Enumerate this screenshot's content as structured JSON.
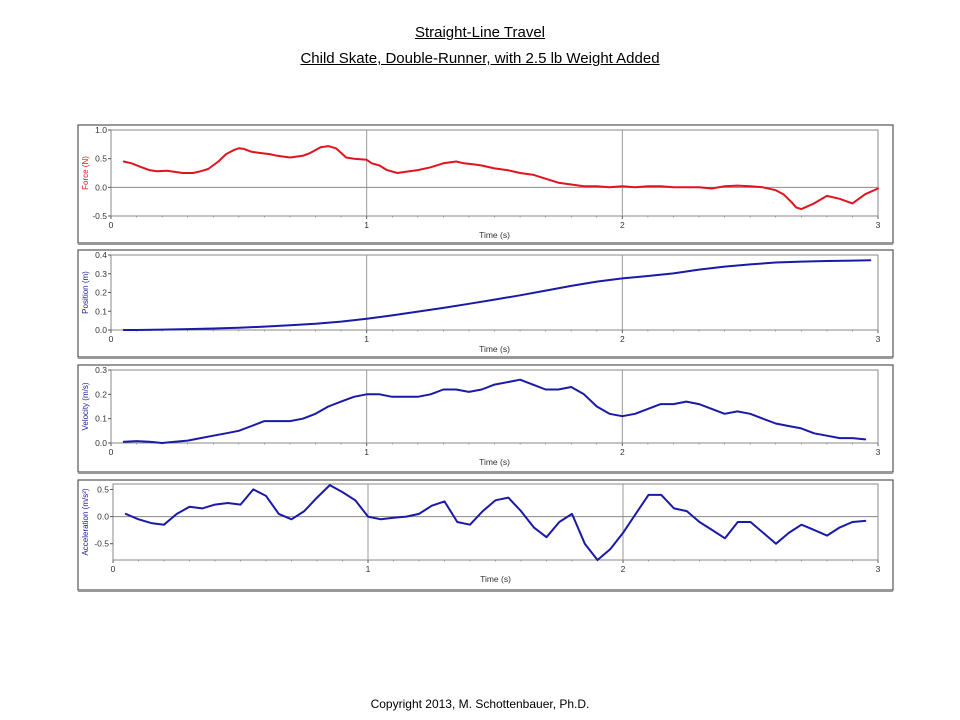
{
  "title": "Straight-Line Travel",
  "subtitle": "Child Skate, Double-Runner, with 2.5 lb Weight Added",
  "copyright": "Copyright 2013, M. Schottenbauer, Ph.D.",
  "chart_data": [
    {
      "type": "line",
      "ylabel": "Force (N)",
      "xlabel": "Time (s)",
      "xlim": [
        0,
        3
      ],
      "ylim": [
        -0.5,
        1.0
      ],
      "xticks": [
        "0",
        "1",
        "2",
        "3"
      ],
      "yticks": [
        "1.0",
        "0.5",
        "0.0",
        "-0.5"
      ],
      "color": "#e0141e",
      "grid": "vertical",
      "series": [
        {
          "x": [
            0.05,
            0.08,
            0.12,
            0.15,
            0.18,
            0.22,
            0.25,
            0.28,
            0.32,
            0.35,
            0.38,
            0.42,
            0.45,
            0.48,
            0.5,
            0.52,
            0.55,
            0.58,
            0.62,
            0.65,
            0.7,
            0.75,
            0.78,
            0.82,
            0.85,
            0.88,
            0.92,
            0.95,
            1.0,
            1.02,
            1.05,
            1.08,
            1.12,
            1.15,
            1.2,
            1.25,
            1.3,
            1.35,
            1.38,
            1.42,
            1.45,
            1.5,
            1.55,
            1.6,
            1.65,
            1.7,
            1.75,
            1.8,
            1.85,
            1.9,
            1.95,
            2.0,
            2.05,
            2.1,
            2.15,
            2.2,
            2.25,
            2.3,
            2.35,
            2.4,
            2.45,
            2.5,
            2.55,
            2.6,
            2.63,
            2.66,
            2.68,
            2.7,
            2.75,
            2.8,
            2.85,
            2.9,
            2.95,
            3.0
          ],
          "y": [
            0.45,
            0.42,
            0.35,
            0.3,
            0.28,
            0.29,
            0.27,
            0.25,
            0.25,
            0.28,
            0.32,
            0.45,
            0.58,
            0.65,
            0.68,
            0.67,
            0.62,
            0.6,
            0.58,
            0.55,
            0.52,
            0.55,
            0.6,
            0.7,
            0.72,
            0.68,
            0.52,
            0.5,
            0.48,
            0.42,
            0.38,
            0.3,
            0.25,
            0.27,
            0.3,
            0.35,
            0.42,
            0.45,
            0.42,
            0.4,
            0.38,
            0.33,
            0.3,
            0.25,
            0.22,
            0.15,
            0.08,
            0.05,
            0.02,
            0.02,
            0.0,
            0.02,
            0.0,
            0.02,
            0.02,
            0.0,
            0.0,
            0.0,
            -0.02,
            0.02,
            0.03,
            0.02,
            0.0,
            -0.05,
            -0.12,
            -0.25,
            -0.35,
            -0.38,
            -0.28,
            -0.15,
            -0.2,
            -0.28,
            -0.12,
            -0.02
          ]
        }
      ]
    },
    {
      "type": "line",
      "ylabel": "Position (m)",
      "xlabel": "Time (s)",
      "xlim": [
        0,
        3
      ],
      "ylim": [
        0,
        0.4
      ],
      "xticks": [
        "0",
        "1",
        "2",
        "3"
      ],
      "yticks": [
        "0.4",
        "0.3",
        "0.2",
        "0.1",
        "0.0"
      ],
      "color": "#1a1aa6",
      "grid": "vertical",
      "series": [
        {
          "x": [
            0.05,
            0.1,
            0.2,
            0.3,
            0.4,
            0.5,
            0.6,
            0.7,
            0.8,
            0.9,
            1.0,
            1.1,
            1.2,
            1.3,
            1.4,
            1.5,
            1.6,
            1.7,
            1.8,
            1.9,
            2.0,
            2.1,
            2.2,
            2.3,
            2.4,
            2.5,
            2.6,
            2.7,
            2.8,
            2.9,
            2.97
          ],
          "y": [
            0.0,
            0.0,
            0.002,
            0.005,
            0.008,
            0.012,
            0.018,
            0.025,
            0.033,
            0.045,
            0.06,
            0.078,
            0.098,
            0.118,
            0.14,
            0.162,
            0.185,
            0.21,
            0.235,
            0.258,
            0.275,
            0.288,
            0.302,
            0.322,
            0.338,
            0.35,
            0.36,
            0.365,
            0.368,
            0.37,
            0.372
          ]
        }
      ]
    },
    {
      "type": "line",
      "ylabel": "Velocity (m/s)",
      "xlabel": "Time (s)",
      "xlim": [
        0,
        3
      ],
      "ylim": [
        0,
        0.3
      ],
      "xticks": [
        "0",
        "1",
        "2",
        "3"
      ],
      "yticks": [
        "0.3",
        "0.2",
        "0.1",
        "0.0"
      ],
      "color": "#1a1aa6",
      "grid": "vertical",
      "series": [
        {
          "x": [
            0.05,
            0.1,
            0.15,
            0.2,
            0.25,
            0.3,
            0.35,
            0.4,
            0.45,
            0.5,
            0.55,
            0.6,
            0.65,
            0.7,
            0.75,
            0.8,
            0.85,
            0.9,
            0.95,
            1.0,
            1.05,
            1.1,
            1.15,
            1.2,
            1.25,
            1.3,
            1.35,
            1.4,
            1.45,
            1.5,
            1.55,
            1.6,
            1.65,
            1.7,
            1.75,
            1.8,
            1.85,
            1.9,
            1.95,
            2.0,
            2.05,
            2.1,
            2.15,
            2.2,
            2.25,
            2.3,
            2.35,
            2.4,
            2.45,
            2.5,
            2.55,
            2.6,
            2.65,
            2.7,
            2.75,
            2.8,
            2.85,
            2.9,
            2.95
          ],
          "y": [
            0.005,
            0.008,
            0.005,
            0.0,
            0.005,
            0.01,
            0.02,
            0.03,
            0.04,
            0.05,
            0.07,
            0.09,
            0.09,
            0.09,
            0.1,
            0.12,
            0.15,
            0.17,
            0.19,
            0.2,
            0.2,
            0.19,
            0.19,
            0.19,
            0.2,
            0.22,
            0.22,
            0.21,
            0.22,
            0.24,
            0.25,
            0.26,
            0.24,
            0.22,
            0.22,
            0.23,
            0.2,
            0.15,
            0.12,
            0.11,
            0.12,
            0.14,
            0.16,
            0.16,
            0.17,
            0.16,
            0.14,
            0.12,
            0.13,
            0.12,
            0.1,
            0.08,
            0.07,
            0.06,
            0.04,
            0.03,
            0.02,
            0.02,
            0.015
          ]
        }
      ]
    },
    {
      "type": "line",
      "ylabel": "Acceleration (m/s²)",
      "xlabel": "Time (s)",
      "xlim": [
        0,
        3
      ],
      "ylim": [
        -0.8,
        0.6
      ],
      "xticks": [
        "0",
        "1",
        "2",
        "3"
      ],
      "yticks": [
        "0.5",
        "0.0",
        "-0.5"
      ],
      "ytick_values": [
        0.5,
        0.0,
        -0.5
      ],
      "color": "#1a1aa6",
      "grid": "vertical",
      "series": [
        {
          "x": [
            0.05,
            0.1,
            0.15,
            0.2,
            0.25,
            0.3,
            0.35,
            0.4,
            0.45,
            0.5,
            0.55,
            0.6,
            0.65,
            0.7,
            0.75,
            0.8,
            0.85,
            0.9,
            0.95,
            1.0,
            1.05,
            1.1,
            1.15,
            1.2,
            1.25,
            1.3,
            1.35,
            1.4,
            1.45,
            1.5,
            1.55,
            1.6,
            1.65,
            1.7,
            1.75,
            1.8,
            1.85,
            1.9,
            1.95,
            2.0,
            2.05,
            2.1,
            2.15,
            2.2,
            2.25,
            2.3,
            2.35,
            2.4,
            2.45,
            2.5,
            2.55,
            2.6,
            2.65,
            2.7,
            2.75,
            2.8,
            2.85,
            2.9,
            2.95
          ],
          "y": [
            0.05,
            -0.05,
            -0.12,
            -0.15,
            0.05,
            0.18,
            0.15,
            0.22,
            0.25,
            0.22,
            0.5,
            0.38,
            0.05,
            -0.05,
            0.1,
            0.35,
            0.58,
            0.45,
            0.3,
            0.0,
            -0.05,
            -0.02,
            0.0,
            0.05,
            0.2,
            0.28,
            -0.1,
            -0.15,
            0.1,
            0.3,
            0.35,
            0.1,
            -0.2,
            -0.38,
            -0.1,
            0.05,
            -0.5,
            -0.8,
            -0.6,
            -0.3,
            0.05,
            0.4,
            0.4,
            0.15,
            0.1,
            -0.1,
            -0.25,
            -0.4,
            -0.1,
            -0.1,
            -0.3,
            -0.5,
            -0.3,
            -0.15,
            -0.25,
            -0.35,
            -0.2,
            -0.1,
            -0.08
          ]
        }
      ]
    }
  ]
}
